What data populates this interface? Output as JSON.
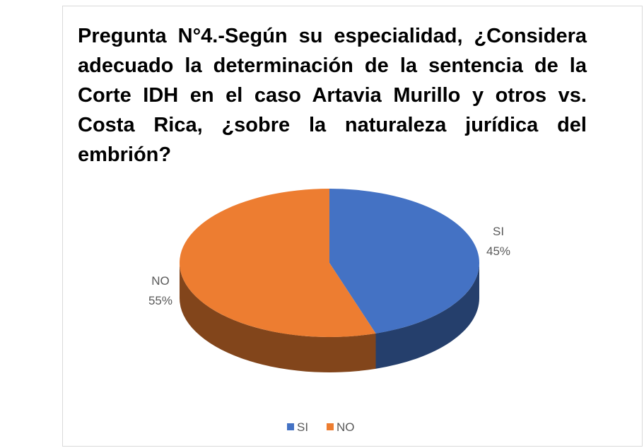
{
  "chart_data": {
    "type": "pie",
    "title": "Pregunta N°4.-Según su especialidad, ¿Considera adecuado la determinación de la sentencia de la Corte IDH en el caso Artavia Murillo y otros vs. Costa Rica, ¿sobre la naturaleza jurídica del embrión?",
    "categories": [
      "SI",
      "NO"
    ],
    "values": [
      45,
      55
    ],
    "value_labels": [
      "45%",
      "55%"
    ],
    "colors": [
      "#4472c4",
      "#ed7d31"
    ],
    "legend": "bottom"
  }
}
